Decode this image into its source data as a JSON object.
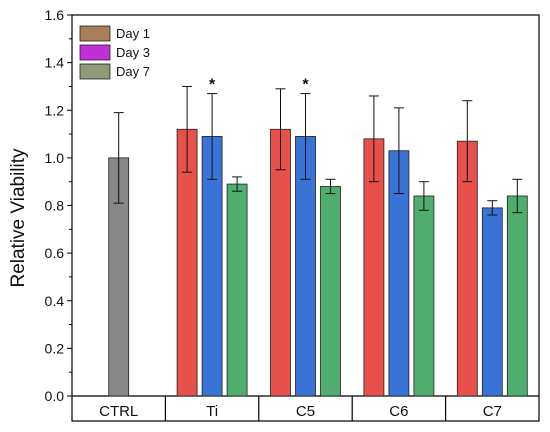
{
  "chart_data": {
    "type": "bar",
    "title": "",
    "xlabel": "",
    "ylabel": "Relative Viability",
    "ylim": [
      0,
      1.6
    ],
    "yticks": [
      "0.0",
      "0.2",
      "0.4",
      "0.6",
      "0.8",
      "1.0",
      "1.2",
      "1.4",
      "1.6"
    ],
    "grid": false,
    "legend_position": "top-left",
    "legend": [
      {
        "name": "Day 1",
        "color": "#a97f5a"
      },
      {
        "name": "Day 3",
        "color": "#c02fd8"
      },
      {
        "name": "Day 7",
        "color": "#8f9a78"
      }
    ],
    "categories": [
      "CTRL",
      "Ti",
      "C5",
      "C6",
      "C7"
    ],
    "ctrl": {
      "value": 1.0,
      "error": 0.19,
      "color": "#888888"
    },
    "series": [
      {
        "color": "#e8504c",
        "values": [
          null,
          1.12,
          1.12,
          1.08,
          1.07
        ],
        "errors": [
          null,
          0.18,
          0.17,
          0.18,
          0.17
        ]
      },
      {
        "color": "#3a73d6",
        "values": [
          null,
          1.09,
          1.09,
          1.03,
          0.79
        ],
        "errors": [
          null,
          0.18,
          0.18,
          0.18,
          0.03
        ]
      },
      {
        "color": "#4fad6e",
        "values": [
          null,
          0.89,
          0.88,
          0.84,
          0.84
        ],
        "errors": [
          null,
          0.03,
          0.03,
          0.06,
          0.07
        ]
      }
    ],
    "annotations": [
      {
        "text": "*",
        "category": "Ti",
        "series_index": 1
      },
      {
        "text": "*",
        "category": "C5",
        "series_index": 1
      }
    ]
  }
}
